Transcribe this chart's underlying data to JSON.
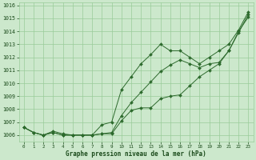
{
  "x": [
    0,
    1,
    2,
    3,
    4,
    5,
    6,
    7,
    8,
    9,
    10,
    11,
    12,
    13,
    14,
    15,
    16,
    17,
    18,
    19,
    20,
    21,
    22,
    23
  ],
  "line1": [
    1006.6,
    1006.2,
    1006.0,
    1006.2,
    1006.0,
    1006.0,
    1006.0,
    1006.0,
    1006.1,
    1006.1,
    1007.1,
    1007.9,
    1008.1,
    1008.1,
    1008.8,
    1009.0,
    1009.1,
    1009.8,
    1010.5,
    1011.0,
    1011.5,
    1012.5,
    1014.0,
    1015.1
  ],
  "line2": [
    1006.6,
    1006.2,
    1006.0,
    1006.2,
    1006.0,
    1006.0,
    1006.0,
    1006.0,
    1006.1,
    1006.2,
    1007.5,
    1008.5,
    1009.3,
    1010.1,
    1010.9,
    1011.4,
    1011.8,
    1011.5,
    1011.2,
    1011.5,
    1011.6,
    1012.5,
    1013.9,
    1015.3
  ],
  "line3": [
    1006.6,
    1006.2,
    1006.0,
    1006.3,
    1006.1,
    1006.0,
    1006.0,
    1006.0,
    1006.8,
    1007.0,
    1009.5,
    1010.5,
    1011.5,
    1012.2,
    1013.0,
    1012.5,
    1012.5,
    1012.0,
    1011.5,
    1012.0,
    1012.5,
    1013.0,
    1014.1,
    1015.5
  ],
  "line_color": "#2d6a2d",
  "bg_color": "#cce8cc",
  "grid_color": "#99cc99",
  "text_color": "#1a4a1a",
  "xlabel": "Graphe pression niveau de la mer (hPa)",
  "ylim": [
    1005.5,
    1016.2
  ],
  "xlim": [
    -0.5,
    23.5
  ],
  "yticks": [
    1006,
    1007,
    1008,
    1009,
    1010,
    1011,
    1012,
    1013,
    1014,
    1015,
    1016
  ],
  "xticks": [
    0,
    1,
    2,
    3,
    4,
    5,
    6,
    7,
    8,
    9,
    10,
    11,
    12,
    13,
    14,
    15,
    16,
    17,
    18,
    19,
    20,
    21,
    22,
    23
  ],
  "figwidth": 3.2,
  "figheight": 2.0,
  "dpi": 100
}
